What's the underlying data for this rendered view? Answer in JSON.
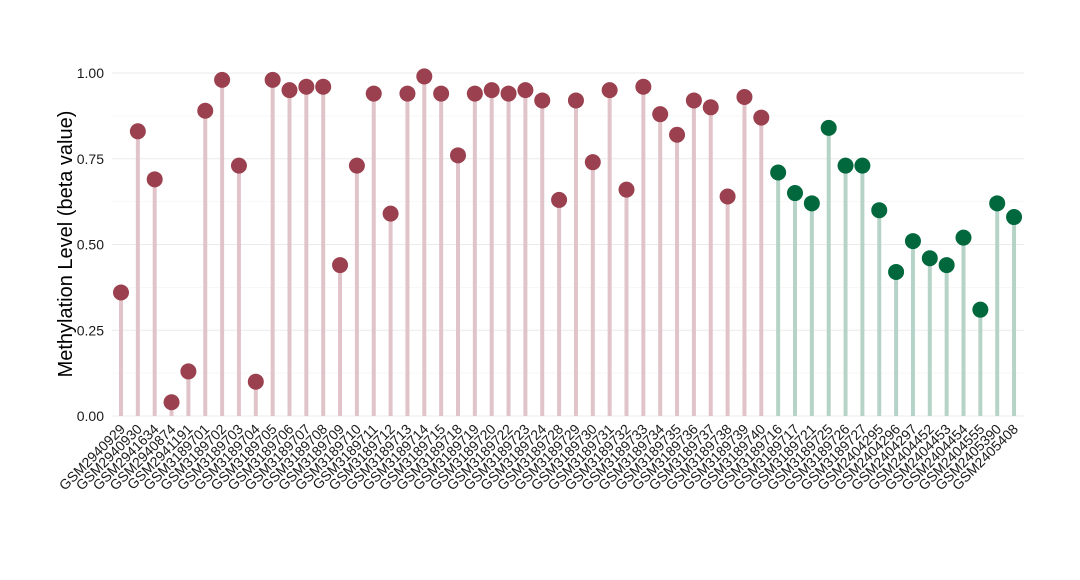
{
  "chart_data": {
    "type": "lollipop",
    "ylabel": "Methylation Level (beta value)",
    "xlabel": "",
    "ylim": [
      0,
      1
    ],
    "yticks": [
      "0.00",
      "0.25",
      "0.50",
      "0.75",
      "1.00"
    ],
    "grid": true,
    "legend": "none",
    "categories": [
      "GSM2940929",
      "GSM2940930",
      "GSM2941634",
      "GSM2940874",
      "GSM2941191",
      "GSM3189701",
      "GSM3189702",
      "GSM3189703",
      "GSM3189704",
      "GSM3189705",
      "GSM3189706",
      "GSM3189707",
      "GSM3189708",
      "GSM3189709",
      "GSM3189710",
      "GSM3189711",
      "GSM3189712",
      "GSM3189713",
      "GSM3189714",
      "GSM3189715",
      "GSM3189718",
      "GSM3189719",
      "GSM3189720",
      "GSM3189722",
      "GSM3189723",
      "GSM3189724",
      "GSM3189728",
      "GSM3189729",
      "GSM3189730",
      "GSM3189731",
      "GSM3189732",
      "GSM3189733",
      "GSM3189734",
      "GSM3189735",
      "GSM3189736",
      "GSM3189737",
      "GSM3189738",
      "GSM3189739",
      "GSM3189740",
      "GSM3189716",
      "GSM3189717",
      "GSM3189721",
      "GSM3189725",
      "GSM3189726",
      "GSM3189727",
      "GSM2404295",
      "GSM2404296",
      "GSM2404297",
      "GSM2404452",
      "GSM2404453",
      "GSM2404454",
      "GSM2404555",
      "GSM2405390",
      "GSM2405408"
    ],
    "values": [
      0.36,
      0.83,
      0.69,
      0.04,
      0.13,
      0.89,
      0.98,
      0.73,
      0.1,
      0.98,
      0.95,
      0.96,
      0.96,
      0.44,
      0.73,
      0.94,
      0.59,
      0.94,
      0.99,
      0.94,
      0.76,
      0.94,
      0.95,
      0.94,
      0.95,
      0.92,
      0.63,
      0.92,
      0.74,
      0.95,
      0.66,
      0.96,
      0.88,
      0.82,
      0.92,
      0.9,
      0.64,
      0.93,
      0.87,
      0.71,
      0.65,
      0.62,
      0.84,
      0.73,
      0.73,
      0.6,
      0.42,
      0.51,
      0.46,
      0.44,
      0.52,
      0.31,
      0.62,
      0.58
    ],
    "groups": [
      "a",
      "a",
      "a",
      "a",
      "a",
      "a",
      "a",
      "a",
      "a",
      "a",
      "a",
      "a",
      "a",
      "a",
      "a",
      "a",
      "a",
      "a",
      "a",
      "a",
      "a",
      "a",
      "a",
      "a",
      "a",
      "a",
      "a",
      "a",
      "a",
      "a",
      "a",
      "a",
      "a",
      "a",
      "a",
      "a",
      "a",
      "a",
      "a",
      "b",
      "b",
      "b",
      "b",
      "b",
      "b",
      "b",
      "b",
      "b",
      "b",
      "b",
      "b",
      "b",
      "b",
      "b"
    ],
    "colors": {
      "a": {
        "point": "#9b404f",
        "stem": "#e0c4ca"
      },
      "b": {
        "point": "#00683c",
        "stem": "#b6d3c8"
      },
      "grid_major": "#ebebeb",
      "grid_minor": "#f5f5f5"
    }
  }
}
